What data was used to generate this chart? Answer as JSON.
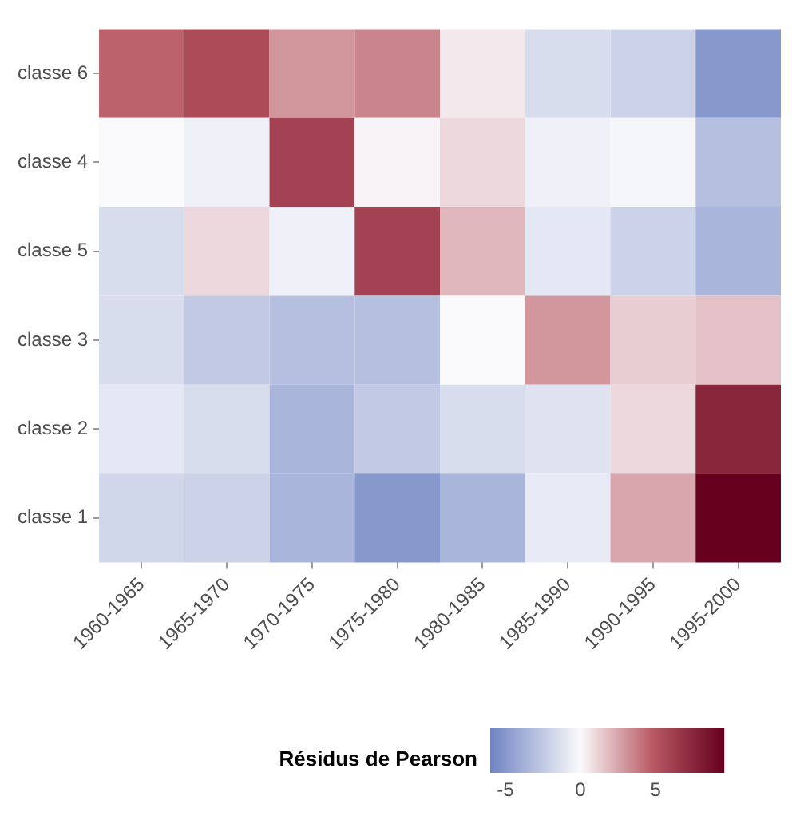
{
  "chart_data": {
    "type": "heatmap",
    "categories": [
      "1960-1965",
      "1965-1970",
      "1970-1975",
      "1975-1980",
      "1980-1985",
      "1985-1990",
      "1990-1995",
      "1995-2000"
    ],
    "y_categories": [
      "classe 6",
      "classe 4",
      "classe 5",
      "classe 3",
      "classe 2",
      "classe 1"
    ],
    "cells": [
      [
        4.5,
        5.5,
        3,
        3.5,
        0.5,
        -1.5,
        -2,
        -5
      ],
      [
        0,
        -0.5,
        6,
        0.2,
        1,
        -0.5,
        -0.2,
        -3
      ],
      [
        -1.5,
        1,
        -0.5,
        6,
        2,
        -1,
        -2,
        -3.5
      ],
      [
        -1.5,
        -2.5,
        -3,
        -3,
        0,
        3,
        1.3,
        1.7
      ],
      [
        -1,
        -1.5,
        -3.5,
        -2.5,
        -1.5,
        -1.2,
        1,
        7.5
      ],
      [
        -1.8,
        -2,
        -3.5,
        -5,
        -3.5,
        -0.8,
        2.5,
        9.5
      ]
    ],
    "clabel": "Résidus de Pearson",
    "clim": [
      -6,
      9.5
    ],
    "cticks": [
      -5,
      0,
      5
    ]
  }
}
